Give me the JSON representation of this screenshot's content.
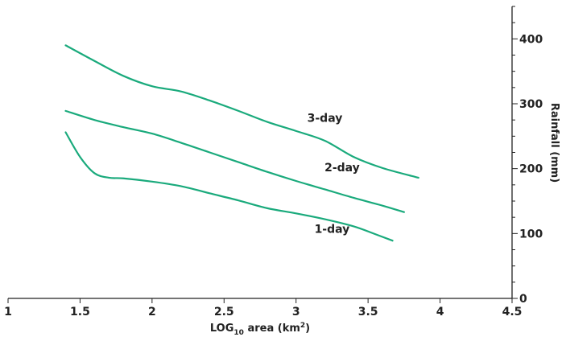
{
  "chart_data": {
    "type": "line",
    "title": "",
    "xlabel": {
      "prefix": "LOG",
      "sub": "10",
      "mid": " area (km",
      "sup": "2",
      "suffix": ")"
    },
    "ylabel": "Rainfall (mm)",
    "xlim": [
      1,
      4.5
    ],
    "ylim": [
      0,
      450
    ],
    "x_ticks": [
      1,
      1.5,
      2,
      2.5,
      3,
      3.5,
      4,
      4.5
    ],
    "x_tick_labels": [
      "1",
      "1.5",
      "2",
      "2.5",
      "3",
      "3.5",
      "4",
      "4.5"
    ],
    "y_ticks": [
      0,
      100,
      200,
      300,
      400
    ],
    "y_tick_labels": [
      "0",
      "100",
      "200",
      "300",
      "400"
    ],
    "y_minor_step": 25,
    "y_axis_side": "right",
    "grid": false,
    "line_color": "#1aaa7c",
    "series": [
      {
        "name": "3-day",
        "x": [
          1.4,
          1.6,
          1.8,
          2.0,
          2.2,
          2.4,
          2.6,
          2.8,
          3.0,
          3.2,
          3.4,
          3.6,
          3.85
        ],
        "y": [
          390,
          366,
          343,
          327,
          319,
          305,
          289,
          272,
          258,
          243,
          218,
          201,
          186
        ]
      },
      {
        "name": "2-day",
        "x": [
          1.4,
          1.6,
          1.8,
          2.0,
          2.2,
          2.4,
          2.6,
          2.8,
          3.0,
          3.2,
          3.4,
          3.6,
          3.75
        ],
        "y": [
          289,
          275,
          264,
          254,
          240,
          225,
          210,
          195,
          181,
          168,
          155,
          143,
          133
        ]
      },
      {
        "name": "1-day",
        "x": [
          1.4,
          1.5,
          1.6,
          1.7,
          1.8,
          2.0,
          2.2,
          2.4,
          2.6,
          2.8,
          3.0,
          3.2,
          3.4,
          3.55,
          3.67
        ],
        "y": [
          256,
          218,
          193,
          186,
          185,
          180,
          173,
          162,
          151,
          139,
          131,
          122,
          111,
          99,
          89
        ]
      }
    ]
  }
}
